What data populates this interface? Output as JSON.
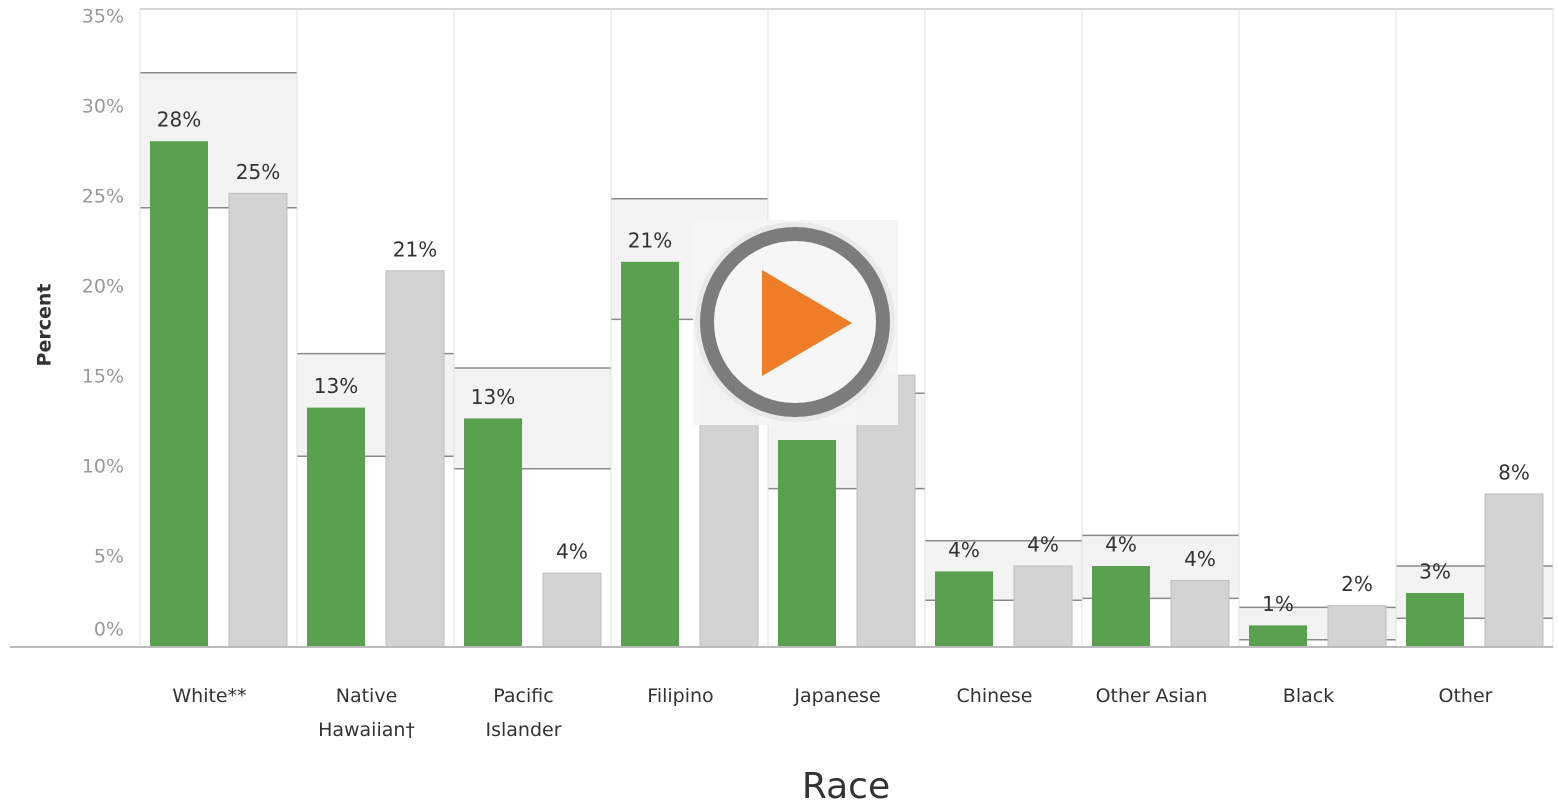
{
  "chart_data": {
    "type": "bar",
    "y_label": "Percent",
    "x_label": "Race",
    "categories": [
      "White**",
      "Native\nHawaiian†",
      "Pacific\nIslander",
      "Filipino",
      "Japanese",
      "Chinese",
      "Other Asian",
      "Black",
      "Other"
    ],
    "series": [
      {
        "color": "#59a14f",
        "values": [
          28.1,
          13.3,
          12.7,
          21.4,
          11.5,
          4.2,
          4.5,
          1.2,
          3.0
        ],
        "value_labels": [
          "28%",
          "13%",
          "13%",
          "21%",
          null,
          "4%",
          "4%",
          "1%",
          "3%"
        ]
      },
      {
        "color": "#d3d3d3",
        "values": [
          25.2,
          20.9,
          4.1,
          17.0,
          15.1,
          4.5,
          3.7,
          2.3,
          8.5
        ],
        "value_labels": [
          "25%",
          "21%",
          "4%",
          null,
          null,
          "4%",
          "4%",
          "2%",
          "8%"
        ]
      }
    ],
    "bands": {
      "low": [
        24.4,
        10.6,
        9.9,
        18.2,
        8.8,
        2.6,
        2.7,
        0.4,
        1.6
      ],
      "high": [
        31.9,
        16.3,
        15.5,
        24.9,
        14.1,
        5.9,
        6.2,
        2.2,
        4.5
      ]
    },
    "ylim": [
      0,
      35.5
    ],
    "yticks": [
      {
        "value": 0,
        "label": "0%"
      },
      {
        "value": 5,
        "label": "5%"
      },
      {
        "value": 10,
        "label": "10%"
      },
      {
        "value": 15,
        "label": "15%"
      },
      {
        "value": 20,
        "label": "20%"
      },
      {
        "value": 25,
        "label": "25%"
      },
      {
        "value": 30,
        "label": "30%"
      },
      {
        "value": 35,
        "label": "35%"
      }
    ],
    "grid": false
  }
}
